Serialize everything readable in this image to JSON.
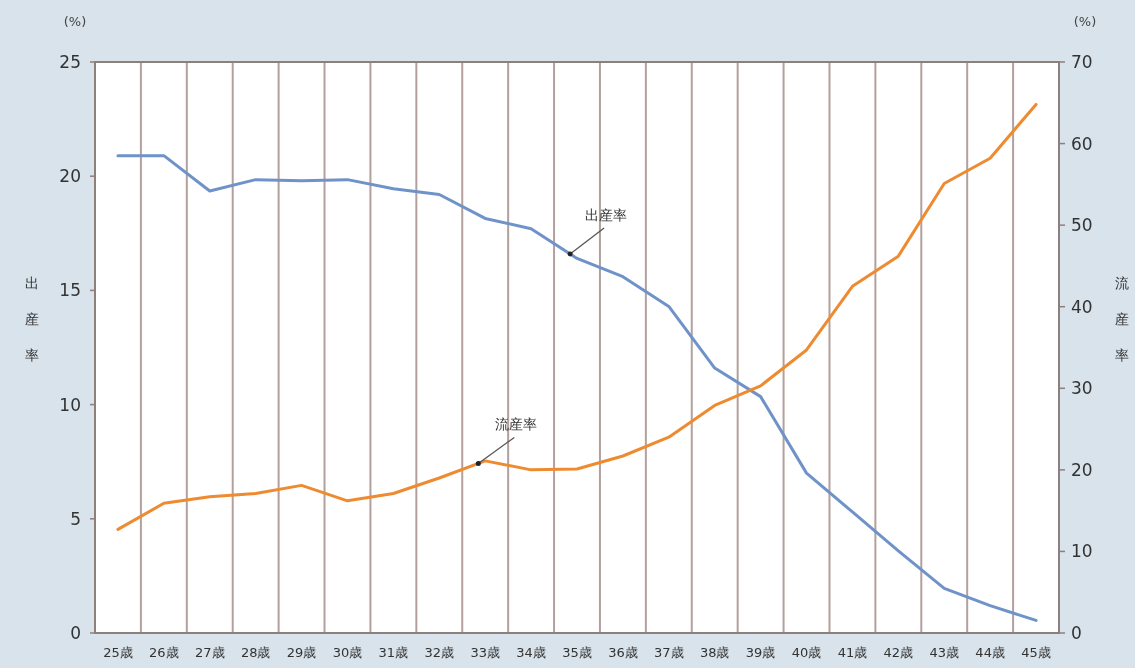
{
  "chart_data": {
    "type": "line",
    "ylabel": "出産率",
    "y2label": "流産率",
    "categories": [
      "25歳",
      "26歳",
      "27歳",
      "28歳",
      "29歳",
      "30歳",
      "31歳",
      "32歳",
      "33歳",
      "34歳",
      "35歳",
      "36歳",
      "37歳",
      "38歳",
      "39歳",
      "40歳",
      "41歳",
      "42歳",
      "43歳",
      "44歳",
      "45歳"
    ],
    "series": [
      {
        "name": "出産率",
        "color": "#6f92c8",
        "values": [
          20.9,
          20.9,
          19.35,
          19.85,
          19.8,
          19.85,
          19.45,
          19.2,
          18.15,
          17.7,
          16.4,
          15.6,
          14.3,
          11.6,
          10.35,
          7.0,
          5.3,
          3.6,
          1.95,
          1.2,
          0.55
        ]
      },
      {
        "name": "流産率",
        "color": "#ee8b30",
        "axis": "y2",
        "values": [
          12.7,
          15.9,
          16.7,
          17.1,
          18.1,
          16.2,
          17.1,
          19.0,
          21.1,
          20.0,
          20.1,
          21.7,
          24.0,
          27.9,
          30.3,
          34.7,
          42.5,
          46.2,
          55.1,
          58.2,
          64.8
        ]
      }
    ],
    "ylim": [
      0,
      25
    ],
    "yticks": [
      0,
      5,
      10,
      15,
      20,
      25
    ],
    "y2lim": [
      0,
      70
    ],
    "y2ticks": [
      0,
      10,
      20,
      30,
      40,
      50,
      60,
      70
    ],
    "grid": "x",
    "annotations": [
      "(%)",
      "(%)"
    ]
  }
}
